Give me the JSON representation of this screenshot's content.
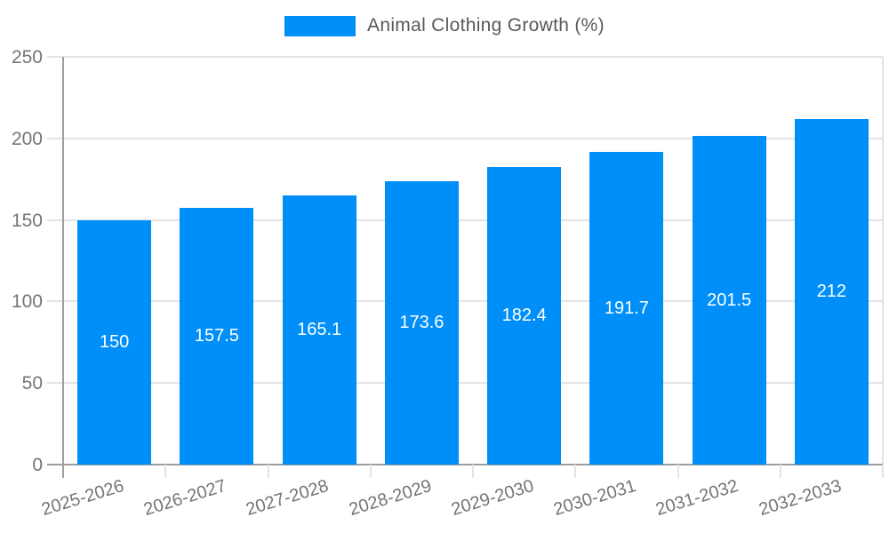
{
  "chart_data": {
    "type": "bar",
    "title": "Animal Clothing Growth (%)",
    "series_name": "Animal Clothing Growth (%)",
    "categories": [
      "2025-2026",
      "2026-2027",
      "2027-2028",
      "2028-2029",
      "2029-2030",
      "2030-2031",
      "2031-2032",
      "2032-2033"
    ],
    "values": [
      150,
      157.5,
      165.1,
      173.6,
      182.4,
      191.7,
      201.5,
      212
    ],
    "value_labels": [
      "150",
      "157.5",
      "165.1",
      "173.6",
      "182.4",
      "191.7",
      "201.5",
      "212"
    ],
    "xlabel": "",
    "ylabel": "",
    "ylim": [
      0,
      250
    ],
    "yticks": [
      0,
      50,
      100,
      150,
      200,
      250
    ],
    "ytick_labels": [
      "0",
      "50",
      "100",
      "150",
      "200",
      "250"
    ],
    "grid": true,
    "legend_position": "top"
  },
  "colors": {
    "bar": "#008ff8",
    "grid_line": "#e3e3e3",
    "axis_line": "#9e9e9e",
    "tick_label": "#757575",
    "legend_text": "#58595b",
    "value_label": "#ffffff",
    "background": "#ffffff"
  }
}
